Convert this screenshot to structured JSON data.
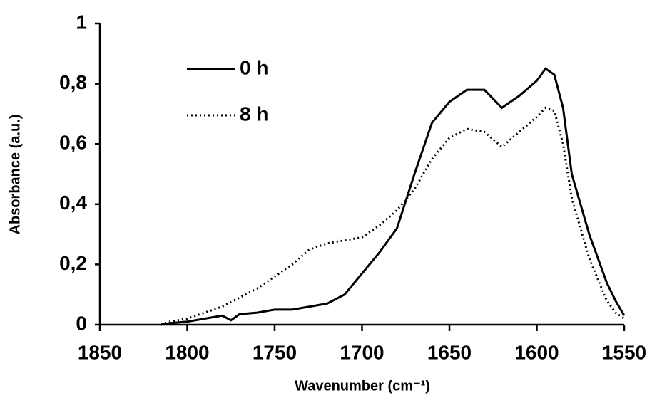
{
  "chart_data": {
    "type": "line",
    "xlabel": "Wavenumber (cm⁻¹)",
    "ylabel": "Absorbance (a.u.)",
    "x": [
      1815,
      1810,
      1800,
      1790,
      1780,
      1775,
      1770,
      1760,
      1750,
      1740,
      1730,
      1720,
      1710,
      1700,
      1690,
      1680,
      1670,
      1660,
      1650,
      1640,
      1630,
      1620,
      1610,
      1600,
      1595,
      1590,
      1585,
      1580,
      1570,
      1560,
      1555,
      1550
    ],
    "series": [
      {
        "name": "0 h",
        "color": "#000000",
        "dash": "solid",
        "values": [
          0,
          0.005,
          0.01,
          0.02,
          0.03,
          0.015,
          0.035,
          0.04,
          0.05,
          0.05,
          0.06,
          0.07,
          0.1,
          0.17,
          0.24,
          0.32,
          0.5,
          0.67,
          0.74,
          0.78,
          0.78,
          0.72,
          0.76,
          0.81,
          0.85,
          0.83,
          0.72,
          0.5,
          0.3,
          0.14,
          0.08,
          0.03
        ]
      },
      {
        "name": "8 h",
        "color": "#000000",
        "dash": "dotted",
        "values": [
          0,
          0.01,
          0.02,
          0.04,
          0.06,
          0.075,
          0.09,
          0.12,
          0.16,
          0.2,
          0.25,
          0.27,
          0.28,
          0.29,
          0.33,
          0.38,
          0.45,
          0.55,
          0.62,
          0.65,
          0.64,
          0.59,
          0.64,
          0.69,
          0.72,
          0.71,
          0.6,
          0.42,
          0.22,
          0.08,
          0.04,
          0.02
        ]
      }
    ],
    "xlim": [
      1850,
      1550
    ],
    "xticks": [
      1850,
      1800,
      1750,
      1700,
      1650,
      1600,
      1550
    ],
    "ylim": [
      0,
      1
    ],
    "yticks": [
      0,
      {
        "value": 0.2,
        "label": "0,2"
      },
      {
        "value": 0.4,
        "label": "0,4"
      },
      {
        "value": 0.6,
        "label": "0,6"
      },
      {
        "value": 0.8,
        "label": "0,8"
      },
      1
    ],
    "legend": "upper-left",
    "grid": false
  }
}
